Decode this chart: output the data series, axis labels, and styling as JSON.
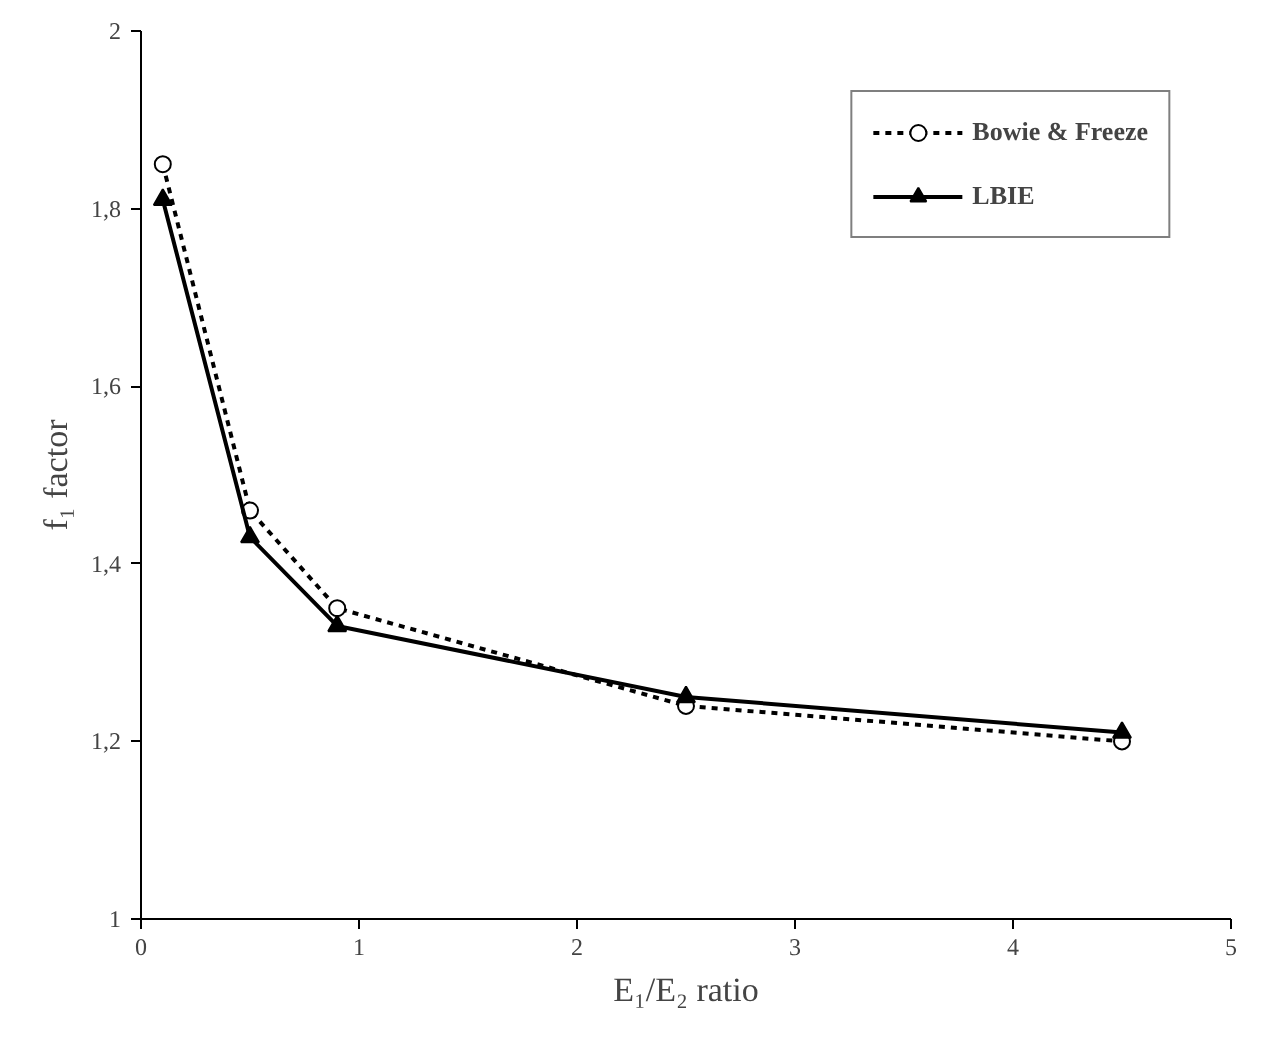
{
  "chart_data": {
    "type": "line",
    "xlabel": "E₁/E₂ ratio",
    "ylabel": "f₁ factor",
    "xlim": [
      0,
      5
    ],
    "ylim": [
      1,
      2
    ],
    "xticks": [
      0,
      1,
      2,
      3,
      4,
      5
    ],
    "yticks": [
      1,
      {
        "value": 1.2,
        "label": "1,2"
      },
      {
        "value": 1.4,
        "label": "1,4"
      },
      {
        "value": 1.6,
        "label": "1,6"
      },
      {
        "value": 1.8,
        "label": "1,8"
      },
      2
    ],
    "x": [
      0.1,
      0.5,
      0.9,
      2.5,
      4.5
    ],
    "series": [
      {
        "name": "Bowie & Freeze",
        "color": "#000000",
        "values": [
          1.85,
          1.46,
          1.35,
          1.24,
          1.2
        ],
        "marker": "circle",
        "line_style": "dotted"
      },
      {
        "name": "LBIE",
        "color": "#000000",
        "values": [
          1.81,
          1.43,
          1.33,
          1.25,
          1.21
        ],
        "marker": "triangle",
        "line_style": "solid"
      }
    ],
    "legend": "top right",
    "grid": false
  }
}
